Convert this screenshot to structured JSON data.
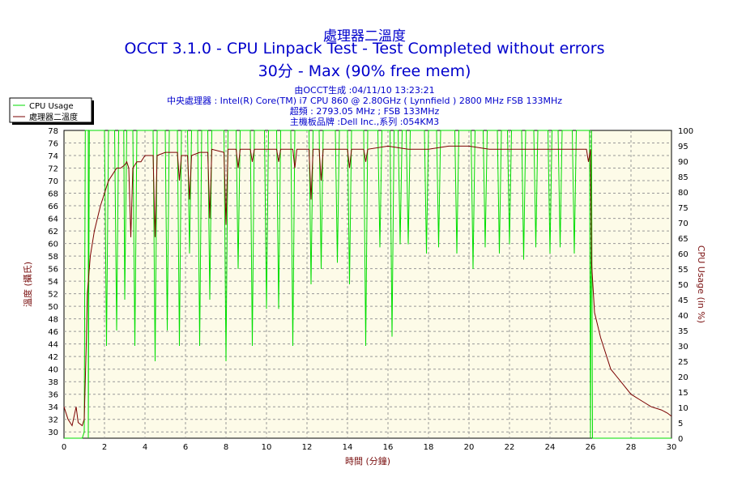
{
  "chart_data": {
    "type": "line",
    "title": "處理器二溫度",
    "subtitle": "OCCT 3.1.0 - CPU Linpack Test - Test Completed without errors",
    "subtitle2": "30分 - Max (90% free mem)",
    "info": [
      "由OCCT生成 :04/11/10 13:23:21",
      "中央處理器 : Intel(R) Core(TM) i7 CPU 860 @ 2.80GHz ( Lynnfield ) 2800 MHz FSB 133MHz",
      "超頻 : 2793.05 MHz ; FSB 133MHz",
      "主機板品牌 :Dell Inc.,系列 :054KM3"
    ],
    "xlabel": "時間 (分鐘)",
    "ylabel_left": "溫度 (攝氏)",
    "ylabel_right": "CPU Usage (in %)",
    "xlim": [
      0,
      30
    ],
    "ylim_left": [
      29,
      78
    ],
    "ylim_right": [
      0,
      100
    ],
    "x_ticks": [
      0,
      2,
      4,
      6,
      8,
      10,
      12,
      14,
      16,
      18,
      20,
      22,
      24,
      26,
      28,
      30
    ],
    "y_ticks_left": [
      30,
      32,
      34,
      36,
      38,
      40,
      42,
      44,
      46,
      48,
      50,
      52,
      54,
      56,
      58,
      60,
      62,
      64,
      66,
      68,
      70,
      72,
      74,
      76,
      78
    ],
    "y_ticks_right": [
      0,
      5,
      10,
      15,
      20,
      25,
      30,
      35,
      40,
      45,
      50,
      55,
      60,
      65,
      70,
      75,
      80,
      85,
      90,
      95,
      100
    ],
    "grid": true,
    "legend_position": "top-left",
    "series": [
      {
        "name": "CPU Usage",
        "color": "#00dd00",
        "axis": "right",
        "points": [
          [
            0,
            0
          ],
          [
            0.9,
            0
          ],
          [
            1.0,
            2
          ],
          [
            1.05,
            100
          ],
          [
            1.1,
            100
          ],
          [
            1.2,
            100
          ],
          [
            1.2,
            0
          ],
          [
            1.25,
            100
          ],
          [
            2.0,
            100
          ],
          [
            2.1,
            30
          ],
          [
            2.2,
            100
          ],
          [
            2.5,
            100
          ],
          [
            2.6,
            35
          ],
          [
            2.7,
            100
          ],
          [
            2.95,
            100
          ],
          [
            3.0,
            45
          ],
          [
            3.1,
            100
          ],
          [
            3.4,
            100
          ],
          [
            3.5,
            30
          ],
          [
            3.6,
            100
          ],
          [
            4.4,
            100
          ],
          [
            4.5,
            25
          ],
          [
            4.6,
            100
          ],
          [
            5.0,
            100
          ],
          [
            5.1,
            35
          ],
          [
            5.2,
            100
          ],
          [
            5.6,
            100
          ],
          [
            5.7,
            30
          ],
          [
            5.8,
            100
          ],
          [
            6.1,
            100
          ],
          [
            6.2,
            60
          ],
          [
            6.3,
            100
          ],
          [
            6.6,
            100
          ],
          [
            6.7,
            30
          ],
          [
            6.8,
            100
          ],
          [
            7.1,
            100
          ],
          [
            7.2,
            45
          ],
          [
            7.3,
            100
          ],
          [
            7.9,
            100
          ],
          [
            8.0,
            25
          ],
          [
            8.1,
            100
          ],
          [
            8.5,
            100
          ],
          [
            8.6,
            55
          ],
          [
            8.7,
            100
          ],
          [
            9.2,
            100
          ],
          [
            9.3,
            30
          ],
          [
            9.4,
            100
          ],
          [
            9.9,
            100
          ],
          [
            10.0,
            42
          ],
          [
            10.1,
            100
          ],
          [
            10.5,
            100
          ],
          [
            10.6,
            42
          ],
          [
            10.7,
            100
          ],
          [
            11.2,
            100
          ],
          [
            11.3,
            30
          ],
          [
            11.4,
            100
          ],
          [
            12.1,
            100
          ],
          [
            12.2,
            50
          ],
          [
            12.3,
            100
          ],
          [
            12.6,
            100
          ],
          [
            12.7,
            55
          ],
          [
            12.8,
            100
          ],
          [
            13.4,
            100
          ],
          [
            13.5,
            57
          ],
          [
            13.6,
            100
          ],
          [
            14.0,
            100
          ],
          [
            14.1,
            50
          ],
          [
            14.2,
            100
          ],
          [
            14.8,
            100
          ],
          [
            14.9,
            30
          ],
          [
            15.0,
            100
          ],
          [
            15.5,
            100
          ],
          [
            15.6,
            62
          ],
          [
            15.7,
            100
          ],
          [
            16.1,
            100
          ],
          [
            16.2,
            33
          ],
          [
            16.3,
            100
          ],
          [
            16.5,
            100
          ],
          [
            16.6,
            63
          ],
          [
            16.7,
            100
          ],
          [
            16.9,
            100
          ],
          [
            17.0,
            63
          ],
          [
            17.1,
            100
          ],
          [
            17.8,
            100
          ],
          [
            17.9,
            60
          ],
          [
            18.0,
            100
          ],
          [
            18.4,
            100
          ],
          [
            18.5,
            62
          ],
          [
            18.6,
            100
          ],
          [
            19.3,
            100
          ],
          [
            19.4,
            60
          ],
          [
            19.5,
            100
          ],
          [
            20.1,
            100
          ],
          [
            20.2,
            55
          ],
          [
            20.3,
            100
          ],
          [
            20.7,
            100
          ],
          [
            20.8,
            62
          ],
          [
            20.9,
            100
          ],
          [
            21.4,
            100
          ],
          [
            21.5,
            60
          ],
          [
            21.6,
            100
          ],
          [
            21.9,
            100
          ],
          [
            22.0,
            63
          ],
          [
            22.1,
            100
          ],
          [
            22.6,
            100
          ],
          [
            22.7,
            58
          ],
          [
            22.8,
            100
          ],
          [
            23.2,
            100
          ],
          [
            23.3,
            62
          ],
          [
            23.4,
            100
          ],
          [
            23.9,
            100
          ],
          [
            24.0,
            60
          ],
          [
            24.1,
            100
          ],
          [
            24.4,
            100
          ],
          [
            24.5,
            62
          ],
          [
            24.6,
            100
          ],
          [
            25.1,
            100
          ],
          [
            25.2,
            60
          ],
          [
            25.3,
            100
          ],
          [
            25.7,
            100
          ],
          [
            25.8,
            100
          ],
          [
            25.95,
            100
          ],
          [
            26.0,
            0
          ],
          [
            26.05,
            100
          ],
          [
            26.1,
            0
          ],
          [
            30,
            0
          ]
        ]
      },
      {
        "name": "處理器二溫度",
        "color": "#7a0000",
        "axis": "left",
        "points": [
          [
            0,
            34
          ],
          [
            0.2,
            32
          ],
          [
            0.4,
            31
          ],
          [
            0.6,
            34
          ],
          [
            0.7,
            31.5
          ],
          [
            0.9,
            31
          ],
          [
            1.0,
            32
          ],
          [
            1.1,
            44
          ],
          [
            1.15,
            52
          ],
          [
            1.3,
            58
          ],
          [
            1.5,
            62
          ],
          [
            1.8,
            66
          ],
          [
            2.0,
            68
          ],
          [
            2.2,
            70
          ],
          [
            2.4,
            71
          ],
          [
            2.6,
            72
          ],
          [
            2.8,
            72
          ],
          [
            3.0,
            72.5
          ],
          [
            3.1,
            73
          ],
          [
            3.2,
            72
          ],
          [
            3.3,
            61
          ],
          [
            3.4,
            72
          ],
          [
            3.6,
            73
          ],
          [
            3.8,
            73
          ],
          [
            4.0,
            74
          ],
          [
            4.4,
            74
          ],
          [
            4.5,
            61
          ],
          [
            4.6,
            74
          ],
          [
            5.0,
            74.5
          ],
          [
            5.6,
            74.5
          ],
          [
            5.7,
            70
          ],
          [
            5.8,
            74
          ],
          [
            6.1,
            74
          ],
          [
            6.2,
            67
          ],
          [
            6.3,
            74
          ],
          [
            6.7,
            74.5
          ],
          [
            6.8,
            74.5
          ],
          [
            7.1,
            74.5
          ],
          [
            7.2,
            64
          ],
          [
            7.3,
            75
          ],
          [
            7.9,
            74.5
          ],
          [
            8.0,
            63
          ],
          [
            8.1,
            75
          ],
          [
            8.5,
            75
          ],
          [
            8.6,
            72
          ],
          [
            8.7,
            75
          ],
          [
            9.2,
            75
          ],
          [
            9.3,
            73
          ],
          [
            9.4,
            75
          ],
          [
            10.5,
            75
          ],
          [
            10.6,
            73
          ],
          [
            10.7,
            75
          ],
          [
            11.3,
            75
          ],
          [
            11.4,
            72
          ],
          [
            11.5,
            75
          ],
          [
            12.1,
            75
          ],
          [
            12.2,
            67
          ],
          [
            12.3,
            75
          ],
          [
            12.6,
            75
          ],
          [
            12.7,
            70
          ],
          [
            12.8,
            75
          ],
          [
            14.0,
            75
          ],
          [
            14.1,
            72
          ],
          [
            14.2,
            75
          ],
          [
            14.8,
            75
          ],
          [
            14.9,
            73
          ],
          [
            15.0,
            75
          ],
          [
            16.0,
            75.5
          ],
          [
            17.0,
            75
          ],
          [
            18.0,
            75
          ],
          [
            19.0,
            75.5
          ],
          [
            20.0,
            75.5
          ],
          [
            21.0,
            75
          ],
          [
            22.0,
            75
          ],
          [
            23.0,
            75
          ],
          [
            24.0,
            75
          ],
          [
            25.0,
            75
          ],
          [
            25.8,
            75
          ],
          [
            25.9,
            73
          ],
          [
            26.0,
            75
          ],
          [
            26.05,
            57
          ],
          [
            26.2,
            49
          ],
          [
            26.5,
            45
          ],
          [
            27.0,
            40
          ],
          [
            27.5,
            38
          ],
          [
            28.0,
            36
          ],
          [
            28.5,
            35
          ],
          [
            29.0,
            34
          ],
          [
            29.5,
            33.5
          ],
          [
            29.8,
            33
          ],
          [
            30,
            32.5
          ]
        ]
      }
    ]
  }
}
